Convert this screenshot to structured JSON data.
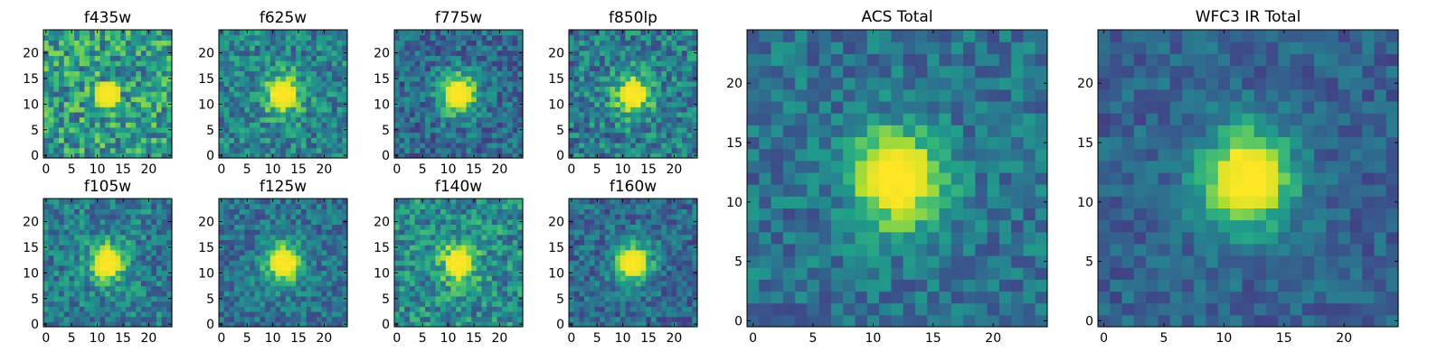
{
  "chart_data": [
    {
      "type": "heatmap",
      "title": "f435w",
      "xlim": [
        0,
        25
      ],
      "ylim": [
        0,
        25
      ],
      "xticks": [
        "0",
        "5",
        "10",
        "15",
        "20"
      ],
      "yticks": [
        "0",
        "5",
        "10",
        "15",
        "20"
      ],
      "peak": [
        12,
        12
      ],
      "peak_strength": 0.05,
      "noise": 0.55,
      "base": 0.55,
      "seed": 11
    },
    {
      "type": "heatmap",
      "title": "f625w",
      "xlim": [
        0,
        25
      ],
      "ylim": [
        0,
        25
      ],
      "xticks": [
        "0",
        "5",
        "10",
        "15",
        "20"
      ],
      "yticks": [
        "0",
        "5",
        "10",
        "15",
        "20"
      ],
      "peak": [
        12,
        12
      ],
      "peak_strength": 0.55,
      "noise": 0.42,
      "base": 0.45,
      "seed": 23
    },
    {
      "type": "heatmap",
      "title": "f775w",
      "xlim": [
        0,
        25
      ],
      "ylim": [
        0,
        25
      ],
      "xticks": [
        "0",
        "5",
        "10",
        "15",
        "20"
      ],
      "yticks": [
        "0",
        "5",
        "10",
        "15",
        "20"
      ],
      "peak": [
        12,
        12
      ],
      "peak_strength": 0.7,
      "noise": 0.38,
      "base": 0.35,
      "seed": 37
    },
    {
      "type": "heatmap",
      "title": "f850lp",
      "xlim": [
        0,
        25
      ],
      "ylim": [
        0,
        25
      ],
      "xticks": [
        "0",
        "5",
        "10",
        "15",
        "20"
      ],
      "yticks": [
        "0",
        "5",
        "10",
        "15",
        "20"
      ],
      "peak": [
        12,
        12
      ],
      "peak_strength": 0.6,
      "noise": 0.45,
      "base": 0.42,
      "seed": 41
    },
    {
      "type": "heatmap",
      "title": "f105w",
      "xlim": [
        0,
        25
      ],
      "ylim": [
        0,
        25
      ],
      "xticks": [
        "0",
        "5",
        "10",
        "15",
        "20"
      ],
      "yticks": [
        "0",
        "5",
        "10",
        "15",
        "20"
      ],
      "peak": [
        12,
        12
      ],
      "peak_strength": 0.55,
      "noise": 0.4,
      "base": 0.42,
      "seed": 53
    },
    {
      "type": "heatmap",
      "title": "f125w",
      "xlim": [
        0,
        25
      ],
      "ylim": [
        0,
        25
      ],
      "xticks": [
        "0",
        "5",
        "10",
        "15",
        "20"
      ],
      "yticks": [
        "0",
        "5",
        "10",
        "15",
        "20"
      ],
      "peak": [
        12,
        12
      ],
      "peak_strength": 0.65,
      "noise": 0.35,
      "base": 0.38,
      "seed": 67
    },
    {
      "type": "heatmap",
      "title": "f140w",
      "xlim": [
        0,
        25
      ],
      "ylim": [
        0,
        25
      ],
      "xticks": [
        "0",
        "5",
        "10",
        "15",
        "20"
      ],
      "yticks": [
        "0",
        "5",
        "10",
        "15",
        "20"
      ],
      "peak": [
        12,
        12
      ],
      "peak_strength": 0.5,
      "noise": 0.45,
      "base": 0.48,
      "seed": 71
    },
    {
      "type": "heatmap",
      "title": "f160w",
      "xlim": [
        0,
        25
      ],
      "ylim": [
        0,
        25
      ],
      "xticks": [
        "0",
        "5",
        "10",
        "15",
        "20"
      ],
      "yticks": [
        "0",
        "5",
        "10",
        "15",
        "20"
      ],
      "peak": [
        12,
        12
      ],
      "peak_strength": 0.65,
      "noise": 0.35,
      "base": 0.35,
      "seed": 83
    },
    {
      "type": "heatmap",
      "title": "ACS Total",
      "xlim": [
        0,
        25
      ],
      "ylim": [
        0,
        25
      ],
      "xticks": [
        "0",
        "5",
        "10",
        "15",
        "20"
      ],
      "yticks": [
        "0",
        "5",
        "10",
        "15",
        "20"
      ],
      "peak": [
        12,
        12
      ],
      "peak_strength": 0.75,
      "noise": 0.32,
      "base": 0.38,
      "seed": 97
    },
    {
      "type": "heatmap",
      "title": "WFC3 IR Total",
      "xlim": [
        0,
        25
      ],
      "ylim": [
        0,
        25
      ],
      "xticks": [
        "0",
        "5",
        "10",
        "15",
        "20"
      ],
      "yticks": [
        "0",
        "5",
        "10",
        "15",
        "20"
      ],
      "peak": [
        12,
        12
      ],
      "peak_strength": 0.8,
      "noise": 0.25,
      "base": 0.32,
      "seed": 101
    }
  ],
  "colormap": [
    "#440154",
    "#482878",
    "#3e4989",
    "#31688e",
    "#26828e",
    "#1f9e89",
    "#35b779",
    "#6ece58",
    "#b5de2b",
    "#fde725"
  ]
}
